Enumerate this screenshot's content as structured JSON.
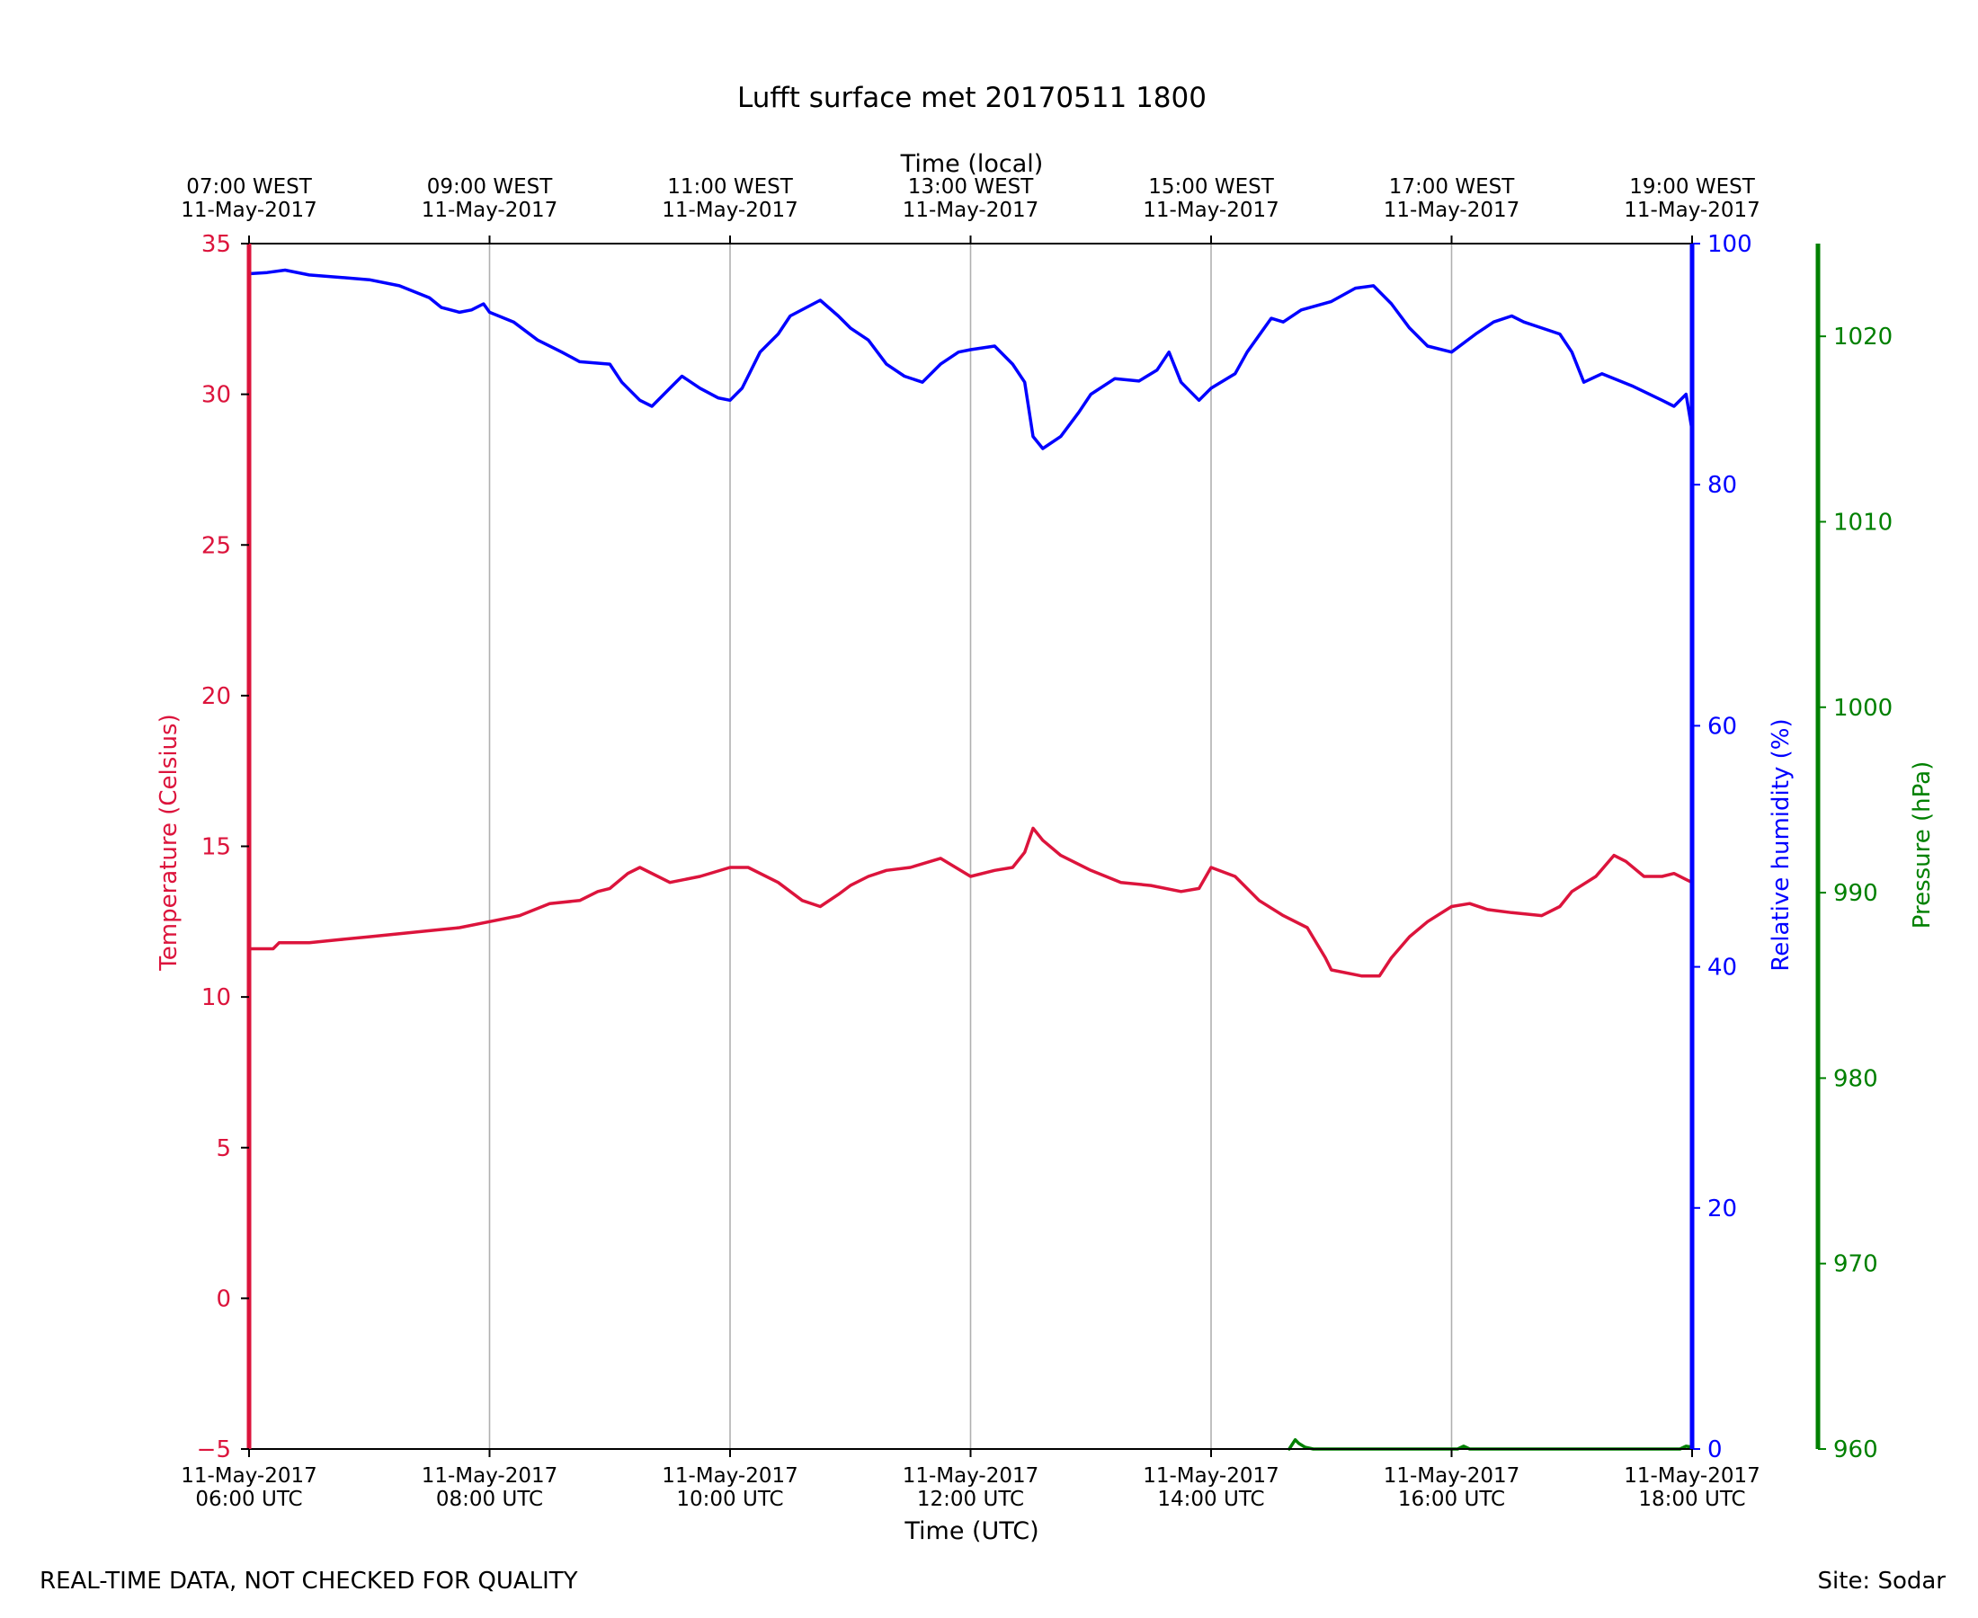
{
  "chart_data": {
    "type": "line",
    "title": "Lufft surface met 20170511 1800",
    "xlabel": "Time (UTC)",
    "x2label": "Time (local)",
    "x_ticks_utc": [
      {
        "date": "11-May-2017",
        "time": "06:00 UTC",
        "hour": 6
      },
      {
        "date": "11-May-2017",
        "time": "08:00 UTC",
        "hour": 8
      },
      {
        "date": "11-May-2017",
        "time": "10:00 UTC",
        "hour": 10
      },
      {
        "date": "11-May-2017",
        "time": "12:00 UTC",
        "hour": 12
      },
      {
        "date": "11-May-2017",
        "time": "14:00 UTC",
        "hour": 14
      },
      {
        "date": "11-May-2017",
        "time": "16:00 UTC",
        "hour": 16
      },
      {
        "date": "11-May-2017",
        "time": "18:00 UTC",
        "hour": 18
      }
    ],
    "x_ticks_local": [
      {
        "time": "07:00 WEST",
        "date": "11-May-2017",
        "hour": 6
      },
      {
        "time": "09:00 WEST",
        "date": "11-May-2017",
        "hour": 8
      },
      {
        "time": "11:00 WEST",
        "date": "11-May-2017",
        "hour": 10
      },
      {
        "time": "13:00 WEST",
        "date": "11-May-2017",
        "hour": 12
      },
      {
        "time": "15:00 WEST",
        "date": "11-May-2017",
        "hour": 14
      },
      {
        "time": "17:00 WEST",
        "date": "11-May-2017",
        "hour": 16
      },
      {
        "time": "19:00 WEST",
        "date": "11-May-2017",
        "hour": 18
      }
    ],
    "xlim": [
      6,
      18
    ],
    "grid": "vertical",
    "series": [
      {
        "name": "Temperature",
        "axis_label": "Temperature (Celsius)",
        "color": "#dc143c",
        "ylim": [
          -5,
          35
        ],
        "ticks": [
          "−5",
          "0",
          "5",
          "10",
          "15",
          "20",
          "25",
          "30",
          "35"
        ],
        "tick_values": [
          -5,
          0,
          5,
          10,
          15,
          20,
          25,
          30,
          35
        ],
        "points": [
          [
            6.0,
            11.6
          ],
          [
            6.2,
            11.6
          ],
          [
            6.25,
            11.8
          ],
          [
            6.5,
            11.8
          ],
          [
            6.75,
            11.9
          ],
          [
            7.0,
            12.0
          ],
          [
            7.25,
            12.1
          ],
          [
            7.5,
            12.2
          ],
          [
            7.75,
            12.3
          ],
          [
            8.0,
            12.5
          ],
          [
            8.25,
            12.7
          ],
          [
            8.5,
            13.1
          ],
          [
            8.75,
            13.2
          ],
          [
            8.9,
            13.5
          ],
          [
            9.0,
            13.6
          ],
          [
            9.15,
            14.1
          ],
          [
            9.25,
            14.3
          ],
          [
            9.5,
            13.8
          ],
          [
            9.75,
            14.0
          ],
          [
            10.0,
            14.3
          ],
          [
            10.15,
            14.3
          ],
          [
            10.4,
            13.8
          ],
          [
            10.6,
            13.2
          ],
          [
            10.75,
            13.0
          ],
          [
            10.9,
            13.4
          ],
          [
            11.0,
            13.7
          ],
          [
            11.15,
            14.0
          ],
          [
            11.3,
            14.2
          ],
          [
            11.5,
            14.3
          ],
          [
            11.75,
            14.6
          ],
          [
            12.0,
            14.0
          ],
          [
            12.2,
            14.2
          ],
          [
            12.35,
            14.3
          ],
          [
            12.45,
            14.8
          ],
          [
            12.52,
            15.6
          ],
          [
            12.6,
            15.2
          ],
          [
            12.75,
            14.7
          ],
          [
            13.0,
            14.2
          ],
          [
            13.25,
            13.8
          ],
          [
            13.5,
            13.7
          ],
          [
            13.75,
            13.5
          ],
          [
            13.9,
            13.6
          ],
          [
            14.0,
            14.3
          ],
          [
            14.2,
            14.0
          ],
          [
            14.4,
            13.2
          ],
          [
            14.6,
            12.7
          ],
          [
            14.8,
            12.3
          ],
          [
            14.95,
            11.3
          ],
          [
            15.0,
            10.9
          ],
          [
            15.25,
            10.7
          ],
          [
            15.4,
            10.7
          ],
          [
            15.5,
            11.3
          ],
          [
            15.65,
            12.0
          ],
          [
            15.8,
            12.5
          ],
          [
            16.0,
            13.0
          ],
          [
            16.15,
            13.1
          ],
          [
            16.3,
            12.9
          ],
          [
            16.5,
            12.8
          ],
          [
            16.75,
            12.7
          ],
          [
            16.9,
            13.0
          ],
          [
            17.0,
            13.5
          ],
          [
            17.2,
            14.0
          ],
          [
            17.35,
            14.7
          ],
          [
            17.45,
            14.5
          ],
          [
            17.6,
            14.0
          ],
          [
            17.75,
            14.0
          ],
          [
            17.85,
            14.1
          ],
          [
            17.95,
            13.9
          ],
          [
            18.0,
            13.8
          ]
        ]
      },
      {
        "name": "Relative humidity",
        "axis_label": "Relative humidity (%)",
        "color": "#0000ff",
        "ylim": [
          0,
          100
        ],
        "ticks": [
          "0",
          "20",
          "40",
          "60",
          "80",
          "100"
        ],
        "tick_values": [
          0,
          20,
          40,
          60,
          80,
          100
        ],
        "points": [
          [
            6.0,
            97.5
          ],
          [
            6.15,
            97.6
          ],
          [
            6.3,
            97.8
          ],
          [
            6.5,
            97.4
          ],
          [
            6.75,
            97.2
          ],
          [
            7.0,
            97.0
          ],
          [
            7.25,
            96.5
          ],
          [
            7.5,
            95.5
          ],
          [
            7.6,
            94.7
          ],
          [
            7.75,
            94.3
          ],
          [
            7.85,
            94.5
          ],
          [
            7.95,
            95.0
          ],
          [
            8.0,
            94.3
          ],
          [
            8.2,
            93.5
          ],
          [
            8.4,
            92.0
          ],
          [
            8.6,
            91.0
          ],
          [
            8.75,
            90.2
          ],
          [
            9.0,
            90.0
          ],
          [
            9.1,
            88.5
          ],
          [
            9.25,
            87.0
          ],
          [
            9.35,
            86.5
          ],
          [
            9.5,
            88.0
          ],
          [
            9.6,
            89.0
          ],
          [
            9.75,
            88.0
          ],
          [
            9.9,
            87.2
          ],
          [
            10.0,
            87.0
          ],
          [
            10.1,
            88.0
          ],
          [
            10.25,
            91.0
          ],
          [
            10.4,
            92.5
          ],
          [
            10.5,
            94.0
          ],
          [
            10.75,
            95.3
          ],
          [
            10.9,
            94.0
          ],
          [
            11.0,
            93.0
          ],
          [
            11.15,
            92.0
          ],
          [
            11.3,
            90.0
          ],
          [
            11.45,
            89.0
          ],
          [
            11.6,
            88.5
          ],
          [
            11.75,
            90.0
          ],
          [
            11.9,
            91.0
          ],
          [
            12.0,
            91.2
          ],
          [
            12.2,
            91.5
          ],
          [
            12.35,
            90.0
          ],
          [
            12.45,
            88.5
          ],
          [
            12.52,
            84.0
          ],
          [
            12.6,
            83.0
          ],
          [
            12.75,
            84.0
          ],
          [
            12.9,
            86.0
          ],
          [
            13.0,
            87.5
          ],
          [
            13.2,
            88.8
          ],
          [
            13.4,
            88.6
          ],
          [
            13.55,
            89.5
          ],
          [
            13.65,
            91.0
          ],
          [
            13.75,
            88.5
          ],
          [
            13.9,
            87.0
          ],
          [
            14.0,
            88.0
          ],
          [
            14.2,
            89.2
          ],
          [
            14.3,
            91.0
          ],
          [
            14.5,
            93.8
          ],
          [
            14.6,
            93.5
          ],
          [
            14.75,
            94.5
          ],
          [
            15.0,
            95.2
          ],
          [
            15.2,
            96.3
          ],
          [
            15.35,
            96.5
          ],
          [
            15.5,
            95.0
          ],
          [
            15.65,
            93.0
          ],
          [
            15.8,
            91.5
          ],
          [
            16.0,
            91.0
          ],
          [
            16.2,
            92.5
          ],
          [
            16.35,
            93.5
          ],
          [
            16.5,
            94.0
          ],
          [
            16.6,
            93.5
          ],
          [
            16.75,
            93.0
          ],
          [
            16.9,
            92.5
          ],
          [
            17.0,
            91.0
          ],
          [
            17.1,
            88.5
          ],
          [
            17.25,
            89.2
          ],
          [
            17.5,
            88.2
          ],
          [
            17.75,
            87.0
          ],
          [
            17.85,
            86.5
          ],
          [
            17.95,
            87.5
          ],
          [
            18.0,
            84.5
          ]
        ]
      },
      {
        "name": "Pressure",
        "axis_label": "Pressure (hPa)",
        "color": "#008000",
        "ylim": [
          960,
          1025
        ],
        "ticks": [
          "960",
          "970",
          "980",
          "990",
          "1000",
          "1010",
          "1020"
        ],
        "tick_values": [
          960,
          970,
          980,
          990,
          1000,
          1010,
          1020
        ],
        "points": [
          [
            14.65,
            960.0
          ],
          [
            14.7,
            960.5
          ],
          [
            14.73,
            960.3
          ],
          [
            14.78,
            960.1
          ],
          [
            14.85,
            960.0
          ],
          [
            16.05,
            960.0
          ],
          [
            16.1,
            960.15
          ],
          [
            16.15,
            960.0
          ],
          [
            17.9,
            960.0
          ],
          [
            17.95,
            960.15
          ],
          [
            18.0,
            960.1
          ]
        ]
      }
    ]
  },
  "footer": {
    "left": "REAL-TIME DATA, NOT CHECKED FOR QUALITY",
    "right": "Site: Sodar"
  }
}
